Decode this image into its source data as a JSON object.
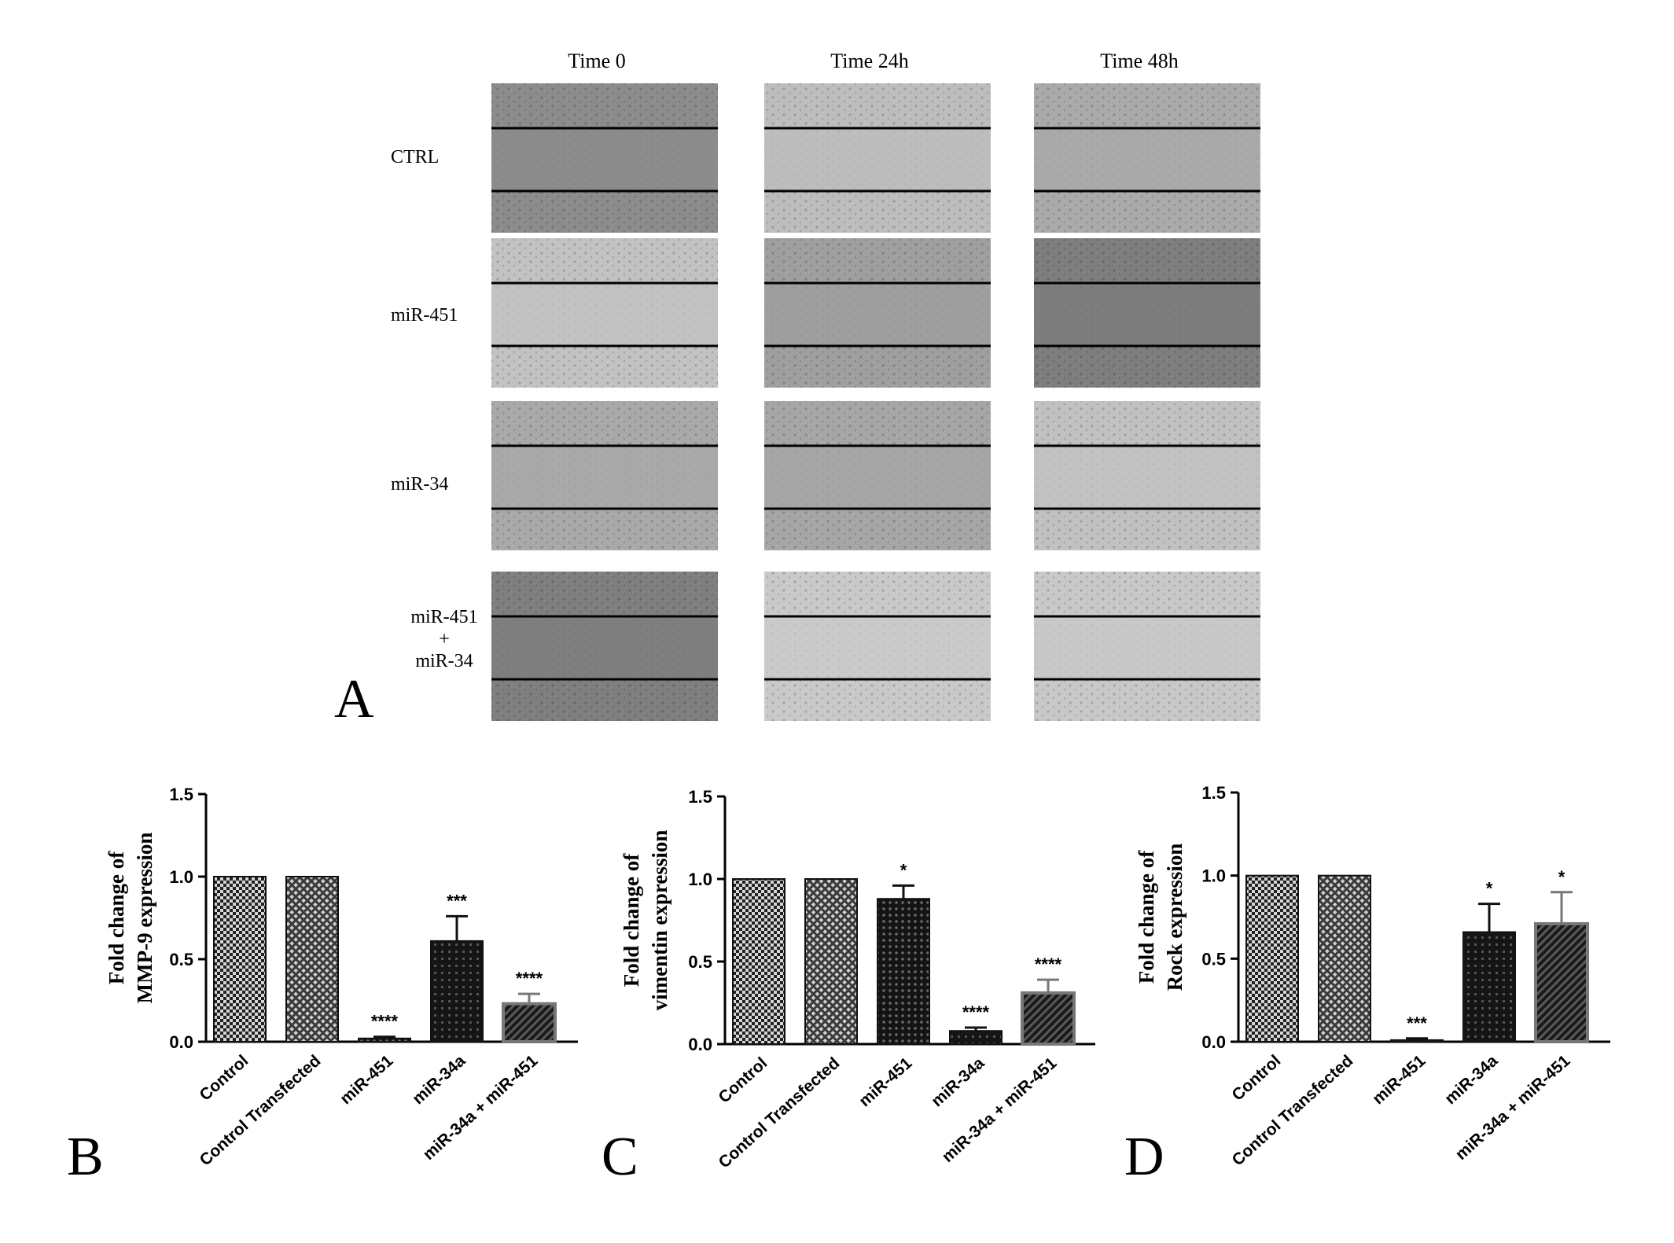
{
  "panel_a": {
    "letter": "A",
    "columns": [
      "Time 0",
      "Time 24h",
      "Time 48h"
    ],
    "rows": [
      {
        "label_lines": [
          "CTRL"
        ]
      },
      {
        "label_lines": [
          "miR-451"
        ]
      },
      {
        "label_lines": [
          "miR-34"
        ]
      },
      {
        "label_lines": [
          "miR-451",
          "+",
          "miR-34"
        ]
      }
    ],
    "image_tones": [
      [
        "#8c8c8c",
        "#bdbdbd",
        "#aaaaaa"
      ],
      [
        "#c2c2c2",
        "#9f9f9f",
        "#7e7e7e"
      ],
      [
        "#a9a9a9",
        "#a6a6a6",
        "#c1c1c1"
      ],
      [
        "#7f7f7f",
        "#c9c9c9",
        "#c8c8c8"
      ]
    ]
  },
  "chart_data": [
    {
      "panel": "B",
      "type": "bar",
      "categories": [
        "Control",
        "Control Transfected",
        "miR-451",
        "miR-34a",
        "miR-34a + miR-451"
      ],
      "values": [
        1.0,
        1.0,
        0.02,
        0.61,
        0.23
      ],
      "errors": [
        0,
        0,
        0.01,
        0.15,
        0.06
      ],
      "significance": [
        "",
        "",
        "****",
        "***",
        "****"
      ],
      "ylabel_lines": [
        "Fold change of",
        "MMP-9 expression"
      ],
      "ylim": [
        0,
        1.5
      ],
      "yticks": [
        "0.0",
        "0.5",
        "1.0",
        "1.5"
      ]
    },
    {
      "panel": "C",
      "type": "bar",
      "categories": [
        "Control",
        "Control Transfected",
        "miR-451",
        "miR-34a",
        "miR-34a + miR-451"
      ],
      "values": [
        1.0,
        1.0,
        0.88,
        0.08,
        0.31
      ],
      "errors": [
        0,
        0,
        0.08,
        0.02,
        0.08
      ],
      "significance": [
        "",
        "",
        "*",
        "****",
        "****"
      ],
      "ylabel_lines": [
        "Fold change of",
        "vimentin expression"
      ],
      "ylim": [
        0,
        1.5
      ],
      "yticks": [
        "0.0",
        "0.5",
        "1.0",
        "1.5"
      ]
    },
    {
      "panel": "D",
      "type": "bar",
      "categories": [
        "Control",
        "Control Transfected",
        "miR-451",
        "miR-34a",
        "miR-34a + miR-451"
      ],
      "values": [
        1.0,
        1.0,
        0.01,
        0.66,
        0.71
      ],
      "errors": [
        0,
        0,
        0.01,
        0.17,
        0.19
      ],
      "significance": [
        "",
        "",
        "***",
        "*",
        "*"
      ],
      "ylabel_lines": [
        "Fold change of",
        "Rock expression"
      ],
      "ylim": [
        0,
        1.5
      ],
      "yticks": [
        "0.0",
        "0.5",
        "1.0",
        "1.5"
      ]
    }
  ],
  "bar_styles": [
    "fine-checker",
    "diagonal-grid",
    "dark-dots",
    "dark-cross",
    "dark-diagonal"
  ],
  "colors": {
    "bar_outline": "#111111",
    "axis": "#000000",
    "gray_outline": "#777777"
  }
}
